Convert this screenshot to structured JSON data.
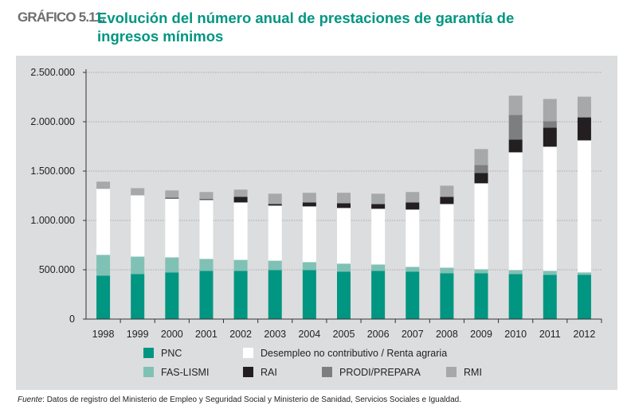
{
  "header": {
    "label": "GRÁFICO 5.11.",
    "title": "Evolución del número anual de prestaciones de garantía de ingresos mínimos"
  },
  "chart_data": {
    "type": "bar",
    "stacked": true,
    "title": "Evolución del número anual de prestaciones de garantía de ingresos mínimos",
    "xlabel": "",
    "ylabel": "",
    "ylim": [
      0,
      2500000
    ],
    "yticks": [
      "0",
      "500.000",
      "1.000.000",
      "1.500.000",
      "2.000.000",
      "2.500.000"
    ],
    "grid": true,
    "legend_placement": "bottom",
    "categories": [
      "1998",
      "1999",
      "2000",
      "2001",
      "2002",
      "2003",
      "2004",
      "2005",
      "2006",
      "2007",
      "2008",
      "2009",
      "2010",
      "2011",
      "2012"
    ],
    "series": [
      {
        "name": "PNC",
        "color": "#009681",
        "values": [
          441000,
          457000,
          473000,
          489000,
          489000,
          497000,
          497000,
          481000,
          489000,
          481000,
          465000,
          465000,
          457000,
          449000,
          449000
        ]
      },
      {
        "name": "FAS-LISMI",
        "color": "#80c1b5",
        "values": [
          210000,
          176000,
          152000,
          121000,
          111000,
          95000,
          80000,
          81000,
          64000,
          48000,
          56000,
          40000,
          40000,
          40000,
          24000
        ]
      },
      {
        "name": "Desempleo no contributivo / Renta agraria",
        "color": "#ffffff",
        "values": [
          669000,
          621000,
          596000,
          597000,
          582000,
          558000,
          565000,
          564000,
          565000,
          581000,
          645000,
          871000,
          1193000,
          1258000,
          1338000
        ]
      },
      {
        "name": "RAI",
        "color": "#231f20",
        "values": [
          0,
          0,
          8000,
          8000,
          58000,
          16000,
          40000,
          48000,
          48000,
          72000,
          73000,
          105000,
          129000,
          193000,
          233000
        ]
      },
      {
        "name": "PRODI/PREPARA",
        "color": "#7d7e80",
        "values": [
          0,
          0,
          0,
          0,
          0,
          0,
          0,
          0,
          0,
          0,
          0,
          80000,
          251000,
          64000,
          0
        ]
      },
      {
        "name": "RMI",
        "color": "#a7a8aa",
        "values": [
          73000,
          73000,
          75000,
          73000,
          72000,
          105000,
          98000,
          106000,
          105000,
          106000,
          113000,
          162000,
          194000,
          227000,
          210000
        ]
      }
    ]
  },
  "footer": {
    "source_label": "Fuente",
    "source_text": ": Datos de registro del Ministerio de Empleo y Seguridad Social y Ministerio de Sanidad, Servicios Sociales e Igualdad."
  }
}
